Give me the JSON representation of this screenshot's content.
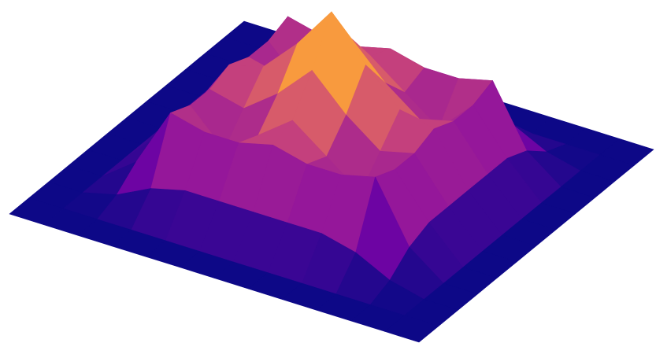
{
  "chart_data": {
    "type": "surface",
    "x": [
      -3,
      -2.5,
      -2,
      -1.5,
      -1,
      -0.5,
      0,
      0.5,
      1,
      1.5,
      2,
      2.5,
      3
    ],
    "y": [
      -3,
      -2.5,
      -2,
      -1.5,
      -1,
      -0.5,
      0,
      0.5,
      1,
      1.5,
      2,
      2.5,
      3
    ],
    "z": [
      [
        0,
        0,
        0,
        0,
        0,
        0,
        0,
        0,
        0,
        0,
        0,
        0,
        0
      ],
      [
        0,
        0,
        0,
        0,
        0,
        0,
        0,
        0,
        0,
        0,
        0,
        0,
        0
      ],
      [
        0,
        0,
        0.05,
        0.15,
        0.2,
        0.2,
        0.2,
        0.2,
        0.2,
        0.15,
        0.05,
        0,
        0
      ],
      [
        0,
        0,
        0.15,
        0.5,
        0.45,
        0.45,
        0.5,
        0.45,
        0.45,
        0.5,
        0.15,
        0,
        0
      ],
      [
        0,
        0,
        0.2,
        0.45,
        0.25,
        0.4,
        0.55,
        0.4,
        0.25,
        0.45,
        0.2,
        0,
        0
      ],
      [
        0,
        0,
        0.2,
        0.45,
        0.4,
        0.55,
        0.75,
        0.55,
        0.4,
        0.45,
        0.2,
        0,
        0
      ],
      [
        0,
        0,
        0.2,
        0.5,
        0.55,
        0.75,
        1,
        0.75,
        0.55,
        0.5,
        0.2,
        0,
        0
      ],
      [
        0,
        0,
        0.2,
        0.45,
        0.4,
        0.55,
        0.75,
        0.55,
        0.4,
        0.45,
        0.2,
        0,
        0
      ],
      [
        0,
        0,
        0.2,
        0.45,
        0.25,
        0.4,
        0.55,
        0.4,
        0.25,
        0.45,
        0.2,
        0,
        0
      ],
      [
        0,
        0,
        0.15,
        0.5,
        0.45,
        0.45,
        0.5,
        0.45,
        0.45,
        0.5,
        0.15,
        0,
        0
      ],
      [
        0,
        0,
        0.05,
        0.15,
        0.2,
        0.2,
        0.2,
        0.2,
        0.2,
        0.15,
        0.05,
        0,
        0
      ],
      [
        0,
        0,
        0,
        0,
        0,
        0,
        0,
        0,
        0,
        0,
        0,
        0,
        0
      ],
      [
        0,
        0,
        0,
        0,
        0,
        0,
        0,
        0,
        0,
        0,
        0,
        0,
        0
      ]
    ],
    "zlim": [
      0,
      1
    ],
    "colorscale": [
      "#0d0887",
      "#7e03a8",
      "#cc4778",
      "#f89540",
      "#f0f921"
    ]
  }
}
